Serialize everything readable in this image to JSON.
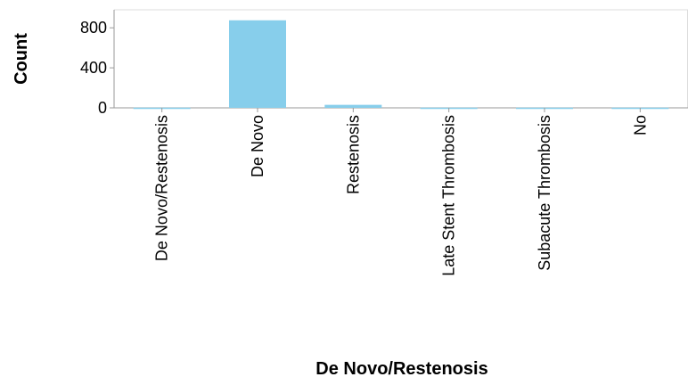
{
  "chart_data": {
    "type": "bar",
    "title": "",
    "xlabel": "De Novo/Restenosis",
    "ylabel": "Count",
    "categories": [
      "De Novo/Restenosis",
      "De Novo",
      "Restenosis",
      "Late Stent Thrombosis",
      "Subacute Thrombosis",
      "No"
    ],
    "values": [
      2,
      875,
      30,
      2,
      2,
      2
    ],
    "y_ticks": [
      0,
      400,
      800
    ],
    "y_tick_labels": [
      "0",
      "400",
      "800"
    ],
    "ylim": [
      0,
      980
    ],
    "grid": false,
    "legend": "none",
    "bar_color": "#87ceeb"
  }
}
